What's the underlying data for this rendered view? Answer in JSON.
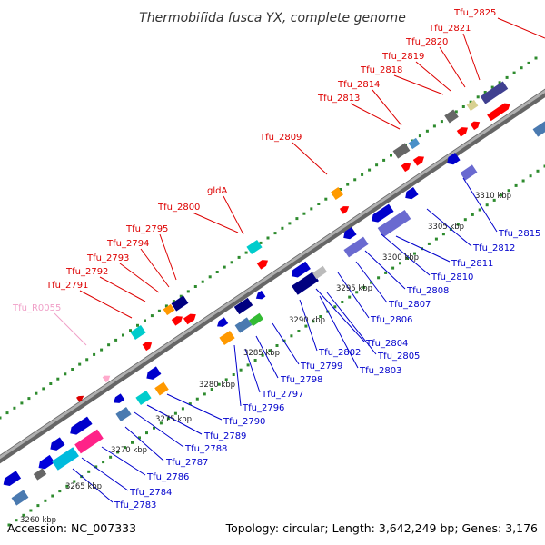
{
  "title": "Thermobifida fusca YX, complete genome",
  "footer": {
    "accession": "Accession: NC_007333",
    "summary": "Topology: circular; Length: 3,642,249 bp; Genes: 3,176"
  },
  "colors": {
    "forward_label": "#dd0000",
    "reverse_label": "#0000cc",
    "rna_label": "#f0a0c8",
    "backbone": "#999999",
    "tick_dots": "#2e8b2e"
  },
  "scale_ticks": [
    "3260 kbp",
    "3265 kbp",
    "3270 kbp",
    "3275 kbp",
    "3280 kbp",
    "3285 kbp",
    "3290 kbp",
    "3295 kbp",
    "3300 kbp",
    "3305 kbp",
    "3310 kbp"
  ],
  "forward_genes": [
    {
      "label": "Tfu_R0055",
      "kind": "rna"
    },
    {
      "label": "Tfu_2791"
    },
    {
      "label": "Tfu_2792"
    },
    {
      "label": "Tfu_2793"
    },
    {
      "label": "Tfu_2794"
    },
    {
      "label": "Tfu_2795"
    },
    {
      "label": "Tfu_2800"
    },
    {
      "label": "gldA"
    },
    {
      "label": "Tfu_2809"
    },
    {
      "label": "Tfu_2813"
    },
    {
      "label": "Tfu_2814"
    },
    {
      "label": "Tfu_2818"
    },
    {
      "label": "Tfu_2819"
    },
    {
      "label": "Tfu_2820"
    },
    {
      "label": "Tfu_2821"
    },
    {
      "label": "Tfu_2825"
    }
  ],
  "reverse_genes": [
    {
      "label": "Tfu_2783"
    },
    {
      "label": "Tfu_2784"
    },
    {
      "label": "Tfu_2786"
    },
    {
      "label": "Tfu_2787"
    },
    {
      "label": "Tfu_2788"
    },
    {
      "label": "Tfu_2789"
    },
    {
      "label": "Tfu_2790"
    },
    {
      "label": "Tfu_2796"
    },
    {
      "label": "Tfu_2797"
    },
    {
      "label": "Tfu_2798"
    },
    {
      "label": "Tfu_2799"
    },
    {
      "label": "Tfu_2802"
    },
    {
      "label": "Tfu_2803"
    },
    {
      "label": "Tfu_2804"
    },
    {
      "label": "Tfu_2805"
    },
    {
      "label": "Tfu_2806"
    },
    {
      "label": "Tfu_2807"
    },
    {
      "label": "Tfu_2808"
    },
    {
      "label": "Tfu_2810"
    },
    {
      "label": "Tfu_2811"
    },
    {
      "label": "Tfu_2812"
    },
    {
      "label": "Tfu_2815"
    }
  ]
}
